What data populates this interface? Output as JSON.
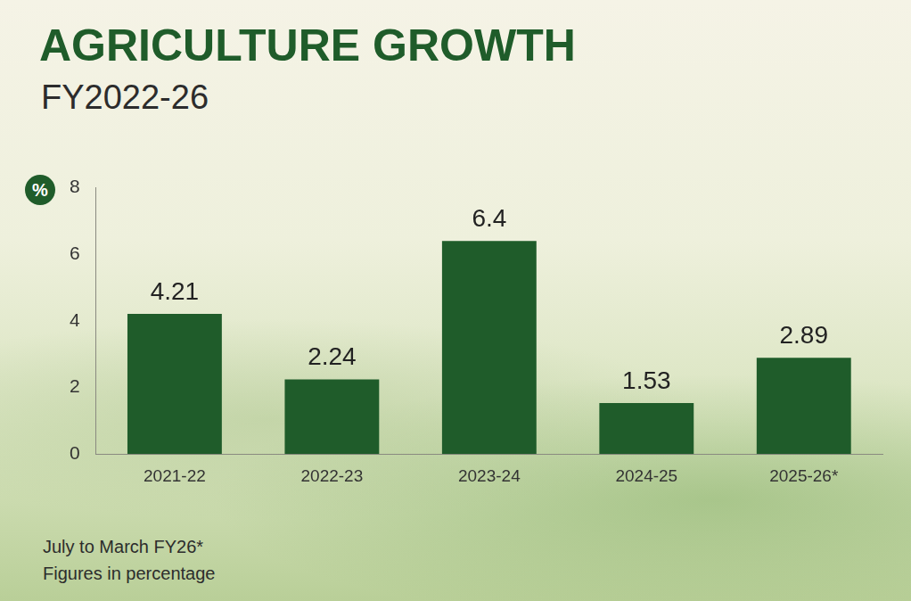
{
  "chart_data": {
    "type": "bar",
    "title": "AGRICULTURE GROWTH",
    "subtitle": "FY2022-26",
    "ylabel": "%",
    "annotations": [
      "July to March FY26*",
      "Figures in percentage"
    ],
    "categories": [
      "2021-22",
      "2022-23",
      "2023-24",
      "2024-25",
      "2025-26*"
    ],
    "values": [
      4.21,
      2.24,
      6.4,
      1.53,
      2.89
    ],
    "color": "#1f5c2a",
    "ylim": [
      0,
      8
    ],
    "yticks": [
      0,
      2,
      4,
      6,
      8
    ],
    "grid": false,
    "data_labels": true
  }
}
